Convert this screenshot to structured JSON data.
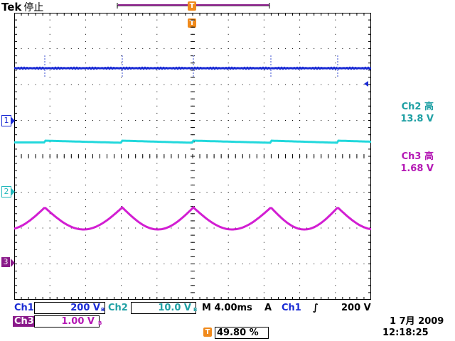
{
  "header": {
    "brand": "Tek",
    "state": "停止"
  },
  "colors": {
    "ch1": "#1a2bd4",
    "ch2": "#22d8dc",
    "ch3": "#d21ed2",
    "trigger": "#f08a1c",
    "grid": "#000000"
  },
  "channels": [
    {
      "id": "1",
      "label": "Ch1"
    },
    {
      "id": "2",
      "label": "Ch2"
    },
    {
      "id": "3",
      "label": "Ch3"
    }
  ],
  "measurements": {
    "ch2": {
      "title": "Ch2 高",
      "value": "13.8 V"
    },
    "ch3": {
      "title": "Ch3 高",
      "value": "1.68 V"
    }
  },
  "bottom": {
    "ch1": {
      "label": "Ch1",
      "scale": "200 V"
    },
    "ch2": {
      "label": "Ch2",
      "scale": "10.0 V"
    },
    "ch3": {
      "label": "Ch3",
      "scale": "1.00 V"
    },
    "bw": "B",
    "timebase": "M 4.00ms",
    "trig_mode": "A",
    "trig_source": "Ch1",
    "trig_slope": "∫",
    "trig_level": "200 V",
    "trig_pos_marker": "T",
    "trig_pos": "49.80 %",
    "date": "1 7月  2009",
    "time": "12:18:25"
  }
}
